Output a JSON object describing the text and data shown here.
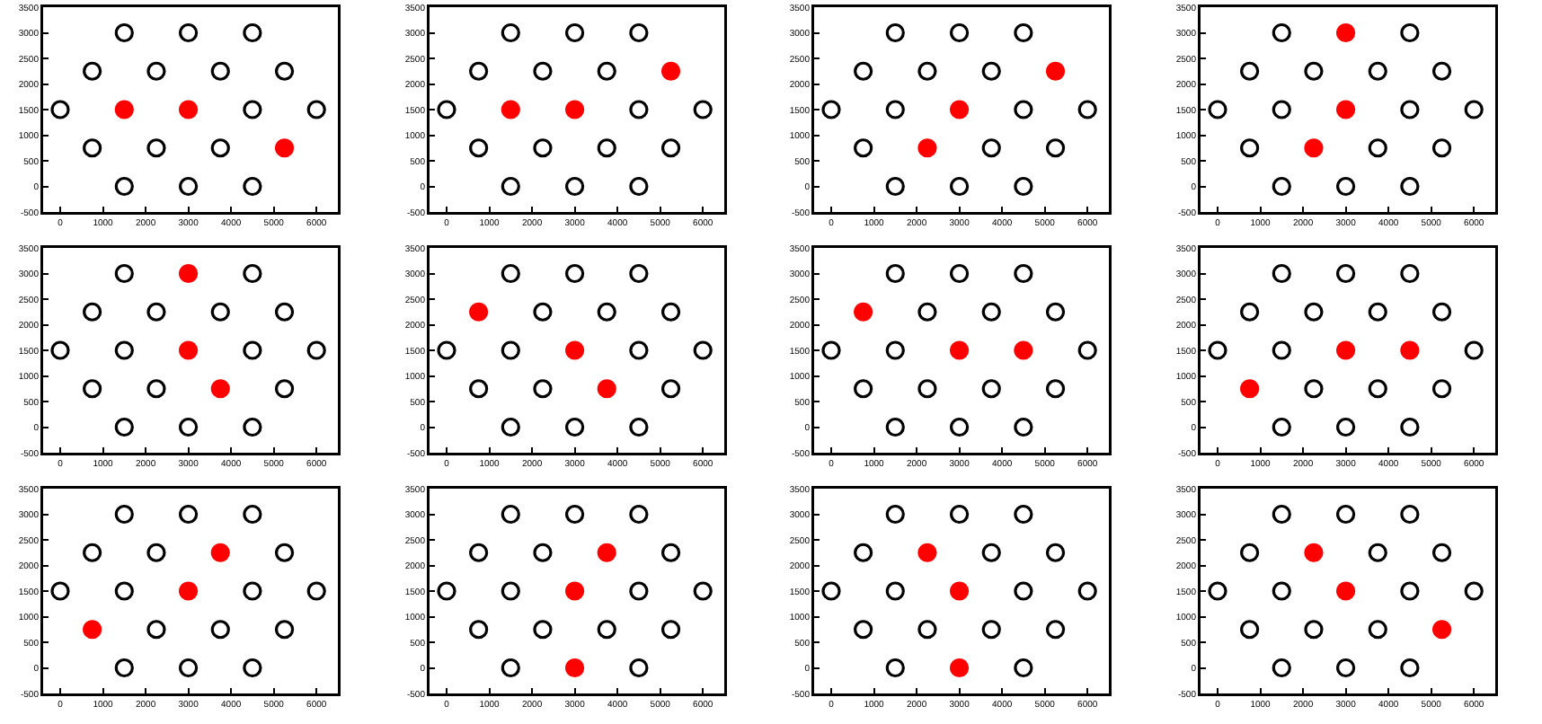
{
  "chart_data": [
    {
      "type": "scatter",
      "marker": "circle",
      "xlim": [
        -400,
        6500
      ],
      "ylim": [
        -500,
        3500
      ],
      "xticks": [
        0,
        1000,
        2000,
        3000,
        4000,
        5000,
        6000
      ],
      "yticks": [
        -500,
        0,
        500,
        1000,
        1500,
        2000,
        2500,
        3000,
        3500
      ],
      "series": [
        {
          "color": "#000000",
          "x": [
            1500,
            3000,
            4500,
            750,
            2250,
            3750,
            0,
            4500,
            6000,
            750,
            2250,
            3750,
            5250,
            1500,
            3000,
            4500
          ],
          "values": [
            0,
            0,
            0,
            750,
            750,
            750,
            1500,
            1500,
            1500,
            2250,
            2250,
            2250,
            2250,
            3000,
            3000,
            3000
          ]
        },
        {
          "color": "#ff0000",
          "x": [
            1500,
            3000,
            5250
          ],
          "values": [
            1500,
            1500,
            750
          ]
        }
      ]
    },
    {
      "type": "scatter",
      "marker": "circle",
      "xlim": [
        -400,
        6500
      ],
      "ylim": [
        -500,
        3500
      ],
      "xticks": [
        0,
        1000,
        2000,
        3000,
        4000,
        5000,
        6000
      ],
      "yticks": [
        -500,
        0,
        500,
        1000,
        1500,
        2000,
        2500,
        3000,
        3500
      ],
      "series": [
        {
          "color": "#000000",
          "x": [
            1500,
            3000,
            4500,
            750,
            2250,
            3750,
            5250,
            0,
            4500,
            6000,
            750,
            2250,
            3750,
            1500,
            3000,
            4500
          ],
          "values": [
            0,
            0,
            0,
            750,
            750,
            750,
            750,
            1500,
            1500,
            1500,
            2250,
            2250,
            2250,
            3000,
            3000,
            3000
          ]
        },
        {
          "color": "#ff0000",
          "x": [
            1500,
            3000,
            5250
          ],
          "values": [
            1500,
            1500,
            2250
          ]
        }
      ]
    },
    {
      "type": "scatter",
      "marker": "circle",
      "xlim": [
        -400,
        6500
      ],
      "ylim": [
        -500,
        3500
      ],
      "xticks": [
        0,
        1000,
        2000,
        3000,
        4000,
        5000,
        6000
      ],
      "yticks": [
        -500,
        0,
        500,
        1000,
        1500,
        2000,
        2500,
        3000,
        3500
      ],
      "series": [
        {
          "color": "#000000",
          "x": [
            1500,
            3000,
            4500,
            750,
            3750,
            5250,
            0,
            1500,
            4500,
            6000,
            750,
            2250,
            3750,
            1500,
            3000,
            4500
          ],
          "values": [
            0,
            0,
            0,
            750,
            750,
            750,
            1500,
            1500,
            1500,
            1500,
            2250,
            2250,
            2250,
            3000,
            3000,
            3000
          ]
        },
        {
          "color": "#ff0000",
          "x": [
            2250,
            3000,
            5250
          ],
          "values": [
            750,
            1500,
            2250
          ]
        }
      ]
    },
    {
      "type": "scatter",
      "marker": "circle",
      "xlim": [
        -400,
        6500
      ],
      "ylim": [
        -500,
        3500
      ],
      "xticks": [
        0,
        1000,
        2000,
        3000,
        4000,
        5000,
        6000
      ],
      "yticks": [
        -500,
        0,
        500,
        1000,
        1500,
        2000,
        2500,
        3000,
        3500
      ],
      "series": [
        {
          "color": "#000000",
          "x": [
            1500,
            3000,
            4500,
            750,
            3750,
            5250,
            0,
            1500,
            4500,
            6000,
            750,
            2250,
            3750,
            5250,
            1500,
            4500
          ],
          "values": [
            0,
            0,
            0,
            750,
            750,
            750,
            1500,
            1500,
            1500,
            1500,
            2250,
            2250,
            2250,
            2250,
            3000,
            3000
          ]
        },
        {
          "color": "#ff0000",
          "x": [
            2250,
            3000,
            3000
          ],
          "values": [
            750,
            1500,
            3000
          ]
        }
      ]
    },
    {
      "type": "scatter",
      "marker": "circle",
      "xlim": [
        -400,
        6500
      ],
      "ylim": [
        -500,
        3500
      ],
      "xticks": [
        0,
        1000,
        2000,
        3000,
        4000,
        5000,
        6000
      ],
      "yticks": [
        -500,
        0,
        500,
        1000,
        1500,
        2000,
        2500,
        3000,
        3500
      ],
      "series": [
        {
          "color": "#000000",
          "x": [
            1500,
            3000,
            4500,
            750,
            2250,
            5250,
            0,
            1500,
            4500,
            6000,
            750,
            2250,
            3750,
            5250,
            1500,
            4500
          ],
          "values": [
            0,
            0,
            0,
            750,
            750,
            750,
            1500,
            1500,
            1500,
            1500,
            2250,
            2250,
            2250,
            2250,
            3000,
            3000
          ]
        },
        {
          "color": "#ff0000",
          "x": [
            3750,
            3000,
            3000
          ],
          "values": [
            750,
            1500,
            3000
          ]
        }
      ]
    },
    {
      "type": "scatter",
      "marker": "circle",
      "xlim": [
        -400,
        6500
      ],
      "ylim": [
        -500,
        3500
      ],
      "xticks": [
        0,
        1000,
        2000,
        3000,
        4000,
        5000,
        6000
      ],
      "yticks": [
        -500,
        0,
        500,
        1000,
        1500,
        2000,
        2500,
        3000,
        3500
      ],
      "series": [
        {
          "color": "#000000",
          "x": [
            1500,
            3000,
            4500,
            750,
            2250,
            5250,
            0,
            1500,
            4500,
            6000,
            2250,
            3750,
            5250,
            1500,
            3000,
            4500
          ],
          "values": [
            0,
            0,
            0,
            750,
            750,
            750,
            1500,
            1500,
            1500,
            1500,
            2250,
            2250,
            2250,
            3000,
            3000,
            3000
          ]
        },
        {
          "color": "#ff0000",
          "x": [
            3750,
            3000,
            750
          ],
          "values": [
            750,
            1500,
            2250
          ]
        }
      ]
    },
    {
      "type": "scatter",
      "marker": "circle",
      "xlim": [
        -400,
        6500
      ],
      "ylim": [
        -500,
        3500
      ],
      "xticks": [
        0,
        1000,
        2000,
        3000,
        4000,
        5000,
        6000
      ],
      "yticks": [
        -500,
        0,
        500,
        1000,
        1500,
        2000,
        2500,
        3000,
        3500
      ],
      "series": [
        {
          "color": "#000000",
          "x": [
            1500,
            3000,
            4500,
            750,
            2250,
            3750,
            5250,
            0,
            1500,
            6000,
            2250,
            3750,
            5250,
            1500,
            3000,
            4500
          ],
          "values": [
            0,
            0,
            0,
            750,
            750,
            750,
            750,
            1500,
            1500,
            1500,
            2250,
            2250,
            2250,
            3000,
            3000,
            3000
          ]
        },
        {
          "color": "#ff0000",
          "x": [
            3000,
            4500,
            750
          ],
          "values": [
            1500,
            1500,
            2250
          ]
        }
      ]
    },
    {
      "type": "scatter",
      "marker": "circle",
      "xlim": [
        -400,
        6500
      ],
      "ylim": [
        -500,
        3500
      ],
      "xticks": [
        0,
        1000,
        2000,
        3000,
        4000,
        5000,
        6000
      ],
      "yticks": [
        -500,
        0,
        500,
        1000,
        1500,
        2000,
        2500,
        3000,
        3500
      ],
      "series": [
        {
          "color": "#000000",
          "x": [
            1500,
            3000,
            4500,
            2250,
            3750,
            5250,
            0,
            1500,
            6000,
            750,
            2250,
            3750,
            5250,
            1500,
            3000,
            4500
          ],
          "values": [
            0,
            0,
            0,
            750,
            750,
            750,
            1500,
            1500,
            1500,
            2250,
            2250,
            2250,
            2250,
            3000,
            3000,
            3000
          ]
        },
        {
          "color": "#ff0000",
          "x": [
            750,
            3000,
            4500
          ],
          "values": [
            750,
            1500,
            1500
          ]
        }
      ]
    },
    {
      "type": "scatter",
      "marker": "circle",
      "xlim": [
        -400,
        6500
      ],
      "ylim": [
        -500,
        3500
      ],
      "xticks": [
        0,
        1000,
        2000,
        3000,
        4000,
        5000,
        6000
      ],
      "yticks": [
        -500,
        0,
        500,
        1000,
        1500,
        2000,
        2500,
        3000,
        3500
      ],
      "series": [
        {
          "color": "#000000",
          "x": [
            1500,
            3000,
            4500,
            2250,
            3750,
            5250,
            0,
            1500,
            4500,
            6000,
            750,
            2250,
            5250,
            1500,
            3000,
            4500
          ],
          "values": [
            0,
            0,
            0,
            750,
            750,
            750,
            1500,
            1500,
            1500,
            1500,
            2250,
            2250,
            2250,
            3000,
            3000,
            3000
          ]
        },
        {
          "color": "#ff0000",
          "x": [
            750,
            3000,
            3750
          ],
          "values": [
            750,
            1500,
            2250
          ]
        }
      ]
    },
    {
      "type": "scatter",
      "marker": "circle",
      "xlim": [
        -400,
        6500
      ],
      "ylim": [
        -500,
        3500
      ],
      "xticks": [
        0,
        1000,
        2000,
        3000,
        4000,
        5000,
        6000
      ],
      "yticks": [
        -500,
        0,
        500,
        1000,
        1500,
        2000,
        2500,
        3000,
        3500
      ],
      "series": [
        {
          "color": "#000000",
          "x": [
            1500,
            4500,
            750,
            2250,
            3750,
            5250,
            0,
            1500,
            4500,
            6000,
            750,
            2250,
            5250,
            1500,
            3000,
            4500
          ],
          "values": [
            0,
            0,
            750,
            750,
            750,
            750,
            1500,
            1500,
            1500,
            1500,
            2250,
            2250,
            2250,
            3000,
            3000,
            3000
          ]
        },
        {
          "color": "#ff0000",
          "x": [
            3000,
            3000,
            3750
          ],
          "values": [
            0,
            1500,
            2250
          ]
        }
      ]
    },
    {
      "type": "scatter",
      "marker": "circle",
      "xlim": [
        -400,
        6500
      ],
      "ylim": [
        -500,
        3500
      ],
      "xticks": [
        0,
        1000,
        2000,
        3000,
        4000,
        5000,
        6000
      ],
      "yticks": [
        -500,
        0,
        500,
        1000,
        1500,
        2000,
        2500,
        3000,
        3500
      ],
      "series": [
        {
          "color": "#000000",
          "x": [
            1500,
            4500,
            750,
            2250,
            3750,
            5250,
            0,
            1500,
            4500,
            6000,
            750,
            3750,
            5250,
            1500,
            3000,
            4500
          ],
          "values": [
            0,
            0,
            750,
            750,
            750,
            750,
            1500,
            1500,
            1500,
            1500,
            2250,
            2250,
            2250,
            3000,
            3000,
            3000
          ]
        },
        {
          "color": "#ff0000",
          "x": [
            3000,
            3000,
            2250
          ],
          "values": [
            0,
            1500,
            2250
          ]
        }
      ]
    },
    {
      "type": "scatter",
      "marker": "circle",
      "xlim": [
        -400,
        6500
      ],
      "ylim": [
        -500,
        3500
      ],
      "xticks": [
        0,
        1000,
        2000,
        3000,
        4000,
        5000,
        6000
      ],
      "yticks": [
        -500,
        0,
        500,
        1000,
        1500,
        2000,
        2500,
        3000,
        3500
      ],
      "series": [
        {
          "color": "#000000",
          "x": [
            1500,
            3000,
            4500,
            750,
            2250,
            3750,
            0,
            1500,
            4500,
            6000,
            750,
            3750,
            5250,
            1500,
            3000,
            4500
          ],
          "values": [
            0,
            0,
            0,
            750,
            750,
            750,
            1500,
            1500,
            1500,
            1500,
            2250,
            2250,
            2250,
            3000,
            3000,
            3000
          ]
        },
        {
          "color": "#ff0000",
          "x": [
            5250,
            3000,
            2250
          ],
          "values": [
            750,
            1500,
            2250
          ]
        }
      ]
    }
  ]
}
